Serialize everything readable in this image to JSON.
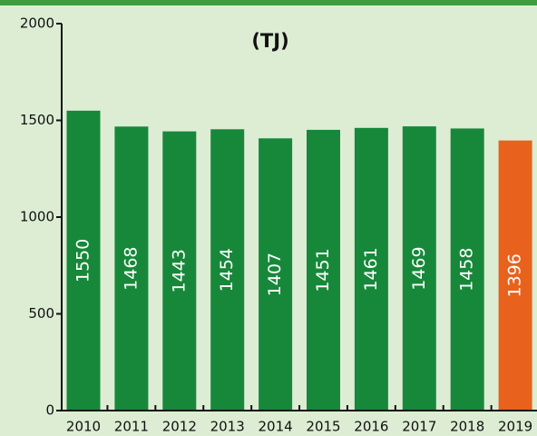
{
  "chart_data": {
    "type": "bar",
    "title": "(TJ)",
    "categories": [
      "2010",
      "2011",
      "2012",
      "2013",
      "2014",
      "2015",
      "2016",
      "2017",
      "2018",
      "2019"
    ],
    "values": [
      1550,
      1468,
      1443,
      1454,
      1407,
      1451,
      1461,
      1469,
      1458,
      1396
    ],
    "colors": [
      "#17883a",
      "#17883a",
      "#17883a",
      "#17883a",
      "#17883a",
      "#17883a",
      "#17883a",
      "#17883a",
      "#17883a",
      "#e8621e"
    ],
    "ylim": [
      0,
      2000
    ],
    "yticks": [
      0,
      500,
      1000,
      1500,
      2000
    ]
  }
}
